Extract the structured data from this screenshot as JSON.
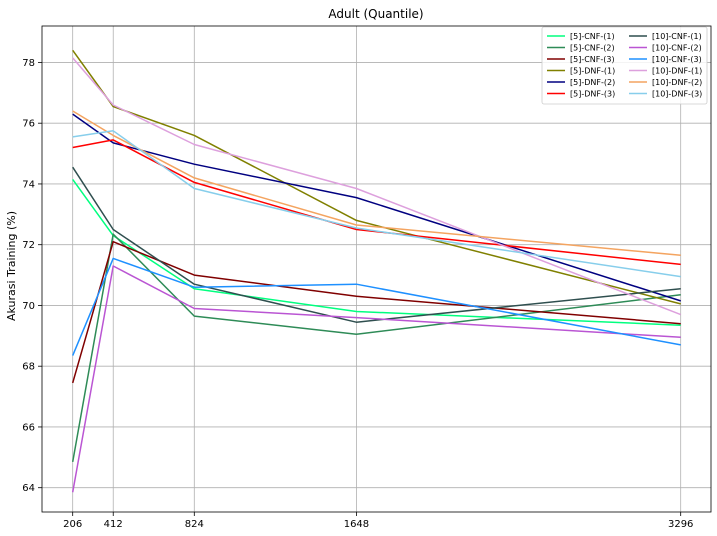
{
  "chart_data": {
    "type": "line",
    "title": "Adult (Quantile)",
    "xlabel": "",
    "ylabel": "Akurasi Training (%)",
    "x": [
      206,
      412,
      824,
      1648,
      3296
    ],
    "x_tick_labels": [
      "206",
      "412",
      "824",
      "1648",
      "3296"
    ],
    "xlim": [
      50,
      3450
    ],
    "ylim": [
      63.2,
      79.2
    ],
    "y_ticks": [
      64,
      66,
      68,
      70,
      72,
      74,
      76,
      78
    ],
    "grid": true,
    "legend_position": "top-right",
    "legend_columns": 2,
    "series": [
      {
        "name": "[5]-CNF-(1)",
        "color": "#00ff7f",
        "values": [
          74.15,
          72.3,
          70.55,
          69.8,
          69.35
        ]
      },
      {
        "name": "[5]-CNF-(2)",
        "color": "#2e8b57",
        "values": [
          64.85,
          72.35,
          69.65,
          69.05,
          70.35
        ]
      },
      {
        "name": "[5]-CNF-(3)",
        "color": "#800000",
        "values": [
          67.45,
          72.1,
          71.0,
          70.3,
          69.4
        ]
      },
      {
        "name": "[5]-DNF-(1)",
        "color": "#808000",
        "values": [
          78.4,
          76.55,
          75.6,
          72.8,
          70.05
        ]
      },
      {
        "name": "[5]-DNF-(2)",
        "color": "#000080",
        "values": [
          76.3,
          75.35,
          74.65,
          73.55,
          70.15
        ]
      },
      {
        "name": "[5]-DNF-(3)",
        "color": "#ff0000",
        "values": [
          75.2,
          75.45,
          74.05,
          72.5,
          71.35
        ]
      },
      {
        "name": "[10]-CNF-(1)",
        "color": "#2f4f4f",
        "values": [
          74.55,
          72.5,
          70.7,
          69.45,
          70.55
        ]
      },
      {
        "name": "[10]-CNF-(2)",
        "color": "#ba55d3",
        "values": [
          63.85,
          71.3,
          69.9,
          69.6,
          68.95
        ]
      },
      {
        "name": "[10]-CNF-(3)",
        "color": "#1e90ff",
        "values": [
          68.35,
          71.55,
          70.6,
          70.7,
          68.7
        ]
      },
      {
        "name": "[10]-DNF-(1)",
        "color": "#dda0dd",
        "values": [
          78.15,
          76.6,
          75.3,
          73.85,
          69.7
        ]
      },
      {
        "name": "[10]-DNF-(2)",
        "color": "#f4a460",
        "values": [
          76.4,
          75.6,
          74.2,
          72.65,
          71.65
        ]
      },
      {
        "name": "[10]-DNF-(3)",
        "color": "#87ceeb",
        "values": [
          75.55,
          75.75,
          73.85,
          72.55,
          70.95
        ]
      }
    ]
  }
}
